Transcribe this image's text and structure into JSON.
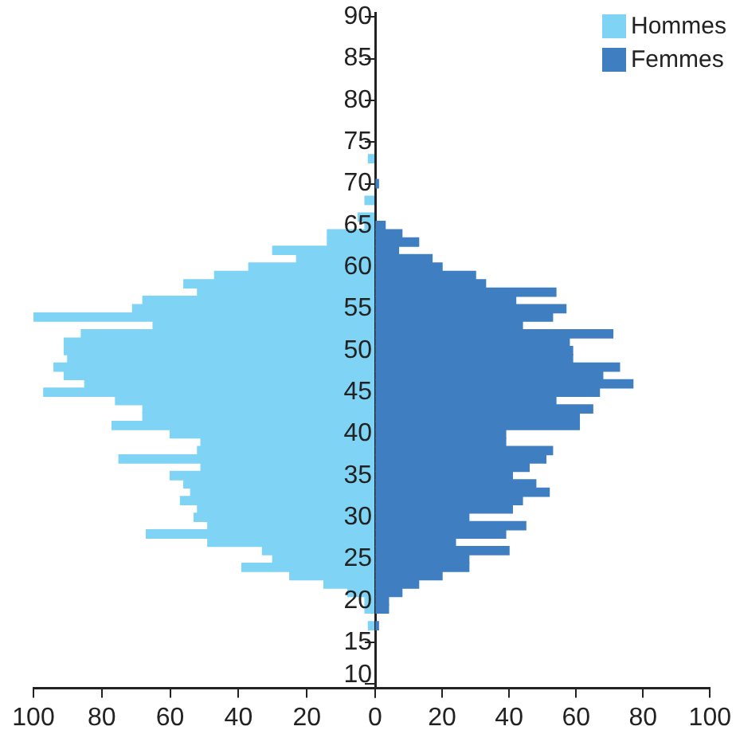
{
  "chart_data": [
    {
      "type": "bar",
      "orientation": "horizontal",
      "categories": [
        "90",
        null,
        null,
        null,
        null,
        "85",
        null,
        null,
        null,
        null,
        "80",
        null,
        null,
        null,
        null,
        "75",
        null,
        null,
        null,
        null,
        "70",
        null,
        null,
        null,
        null,
        "65",
        null,
        null,
        null,
        null,
        "60",
        null,
        null,
        null,
        null,
        "55",
        null,
        null,
        null,
        null,
        "50",
        null,
        null,
        null,
        null,
        "45",
        null,
        null,
        null,
        null,
        "40",
        null,
        null,
        null,
        null,
        "35",
        null,
        null,
        null,
        null,
        "30",
        null,
        null,
        null,
        null,
        "25",
        null,
        null,
        null,
        null,
        "20",
        null,
        null,
        null,
        null,
        "15",
        null,
        null,
        null,
        null,
        "10"
      ],
      "series": [
        {
          "name": "Hommes",
          "color": "#7fd3f5",
          "values": [
            null,
            null,
            null,
            null,
            null,
            null,
            null,
            null,
            null,
            null,
            null,
            null,
            null,
            null,
            null,
            null,
            null,
            2,
            null,
            null,
            null,
            null,
            3,
            null,
            5,
            3,
            14,
            14,
            30,
            23,
            37,
            47,
            56,
            52,
            68,
            71,
            100,
            65,
            86,
            91,
            91,
            90,
            94,
            91,
            85,
            97,
            76,
            68,
            68,
            77,
            60,
            51,
            52,
            75,
            51,
            60,
            56,
            54,
            57,
            52,
            53,
            49,
            67,
            49,
            33,
            30,
            39,
            25,
            15,
            8,
            3,
            3,
            null,
            2,
            null,
            null,
            null,
            null,
            null,
            null,
            null
          ]
        }
      ],
      "xlim": [
        100,
        0
      ],
      "xticks": [
        100,
        80,
        60,
        40,
        20,
        {
          "value": 0,
          "label": null
        }
      ],
      "grid": false,
      "legend": "top right"
    },
    {
      "type": "bar",
      "orientation": "horizontal",
      "categories": [
        "90",
        null,
        null,
        null,
        null,
        "85",
        null,
        null,
        null,
        null,
        "80",
        null,
        null,
        null,
        null,
        "75",
        null,
        null,
        null,
        null,
        "70",
        null,
        null,
        null,
        null,
        "65",
        null,
        null,
        null,
        null,
        "60",
        null,
        null,
        null,
        null,
        "55",
        null,
        null,
        null,
        null,
        "50",
        null,
        null,
        null,
        null,
        "45",
        null,
        null,
        null,
        null,
        "40",
        null,
        null,
        null,
        null,
        "35",
        null,
        null,
        null,
        null,
        "30",
        null,
        null,
        null,
        null,
        "25",
        null,
        null,
        null,
        null,
        "20",
        null,
        null,
        null,
        null,
        "15",
        null,
        null,
        null,
        null,
        "10"
      ],
      "series": [
        {
          "name": "Femmes",
          "color": "#3f7fc1",
          "values": [
            null,
            null,
            null,
            null,
            null,
            null,
            null,
            null,
            null,
            null,
            null,
            null,
            null,
            null,
            null,
            null,
            null,
            null,
            null,
            null,
            1,
            null,
            null,
            null,
            null,
            3,
            8,
            13,
            7,
            17,
            20,
            30,
            33,
            54,
            42,
            57,
            53,
            44,
            71,
            58,
            59,
            59,
            73,
            68,
            77,
            67,
            54,
            65,
            61,
            61,
            39,
            39,
            53,
            51,
            46,
            41,
            48,
            52,
            44,
            41,
            28,
            45,
            39,
            24,
            40,
            28,
            28,
            20,
            13,
            8,
            4,
            4,
            null,
            1,
            null,
            null,
            null,
            null,
            null,
            null,
            null
          ]
        }
      ],
      "xlim": [
        0,
        100
      ],
      "xticks": [
        0,
        20,
        40,
        60,
        80,
        100
      ],
      "tick_labels": "x",
      "grid": false,
      "legend": "top right"
    }
  ]
}
